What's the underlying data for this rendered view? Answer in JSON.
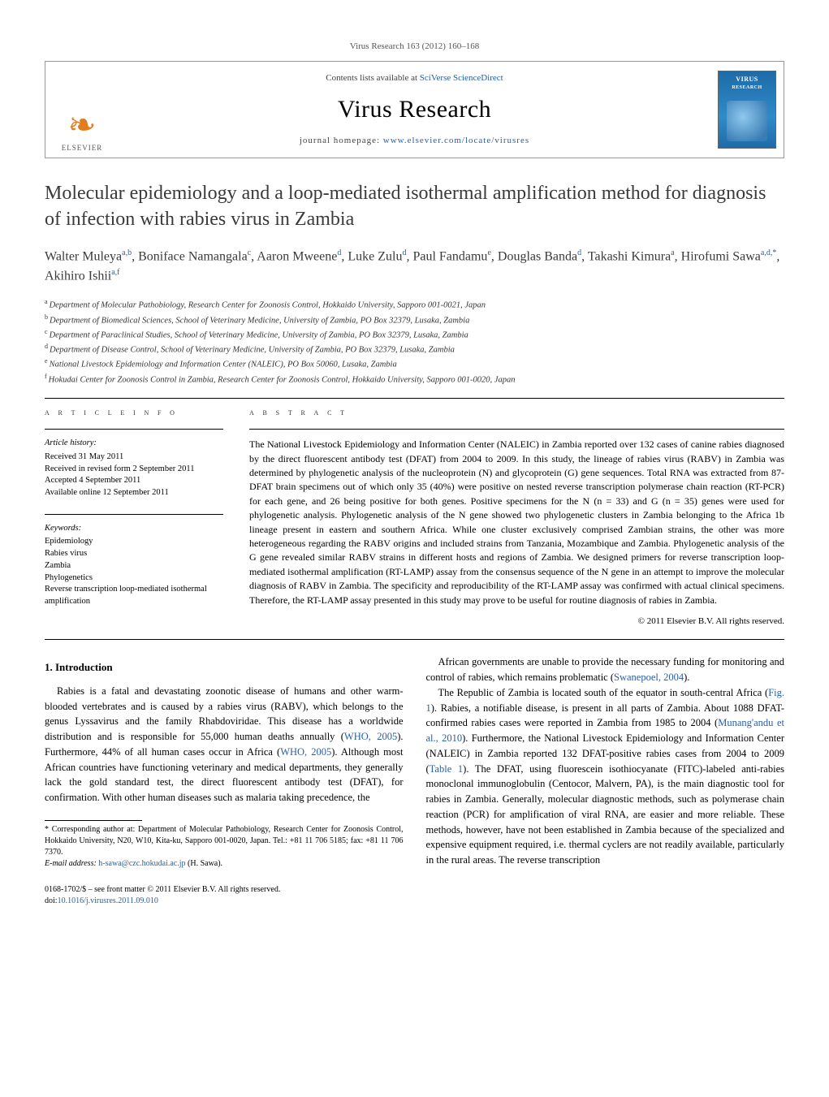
{
  "header": {
    "citation": "Virus Research 163 (2012) 160–168"
  },
  "masthead": {
    "contents_prefix": "Contents lists available at ",
    "contents_link": "SciVerse ScienceDirect",
    "journal": "Virus Research",
    "homepage_prefix": "journal homepage: ",
    "homepage_url": "www.elsevier.com/locate/virusres",
    "publisher_name": "ELSEVIER",
    "cover_label": "VIRUS",
    "cover_sublabel": "RESEARCH"
  },
  "article": {
    "title": "Molecular epidemiology and a loop-mediated isothermal amplification method for diagnosis of infection with rabies virus in Zambia",
    "authors_html_parts": [
      {
        "name": "Walter Muleya",
        "sup": "a,b"
      },
      {
        "name": "Boniface Namangala",
        "sup": "c"
      },
      {
        "name": "Aaron Mweene",
        "sup": "d"
      },
      {
        "name": "Luke Zulu",
        "sup": "d"
      },
      {
        "name": "Paul Fandamu",
        "sup": "e"
      },
      {
        "name": "Douglas Banda",
        "sup": "d"
      },
      {
        "name": "Takashi Kimura",
        "sup": "a"
      },
      {
        "name": "Hirofumi Sawa",
        "sup": "a,d,*"
      },
      {
        "name": "Akihiro Ishii",
        "sup": "a,f"
      }
    ],
    "affiliations": [
      {
        "sup": "a",
        "text": "Department of Molecular Pathobiology, Research Center for Zoonosis Control, Hokkaido University, Sapporo 001-0021, Japan"
      },
      {
        "sup": "b",
        "text": "Department of Biomedical Sciences, School of Veterinary Medicine, University of Zambia, PO Box 32379, Lusaka, Zambia"
      },
      {
        "sup": "c",
        "text": "Department of Paraclinical Studies, School of Veterinary Medicine, University of Zambia, PO Box 32379, Lusaka, Zambia"
      },
      {
        "sup": "d",
        "text": "Department of Disease Control, School of Veterinary Medicine, University of Zambia, PO Box 32379, Lusaka, Zambia"
      },
      {
        "sup": "e",
        "text": "National Livestock Epidemiology and Information Center (NALEIC), PO Box 50060, Lusaka, Zambia"
      },
      {
        "sup": "f",
        "text": "Hokudai Center for Zoonosis Control in Zambia, Research Center for Zoonosis Control, Hokkaido University, Sapporo 001-0020, Japan"
      }
    ]
  },
  "article_info": {
    "label": "a r t i c l e   i n f o",
    "history_hd": "Article history:",
    "history": [
      "Received 31 May 2011",
      "Received in revised form 2 September 2011",
      "Accepted 4 September 2011",
      "Available online 12 September 2011"
    ],
    "keywords_hd": "Keywords:",
    "keywords": [
      "Epidemiology",
      "Rabies virus",
      "Zambia",
      "Phylogenetics",
      "Reverse transcription loop-mediated isothermal amplification"
    ]
  },
  "abstract": {
    "label": "a b s t r a c t",
    "text": "The National Livestock Epidemiology and Information Center (NALEIC) in Zambia reported over 132 cases of canine rabies diagnosed by the direct fluorescent antibody test (DFAT) from 2004 to 2009. In this study, the lineage of rabies virus (RABV) in Zambia was determined by phylogenetic analysis of the nucleoprotein (N) and glycoprotein (G) gene sequences. Total RNA was extracted from 87-DFAT brain specimens out of which only 35 (40%) were positive on nested reverse transcription polymerase chain reaction (RT-PCR) for each gene, and 26 being positive for both genes. Positive specimens for the N (n = 33) and G (n = 35) genes were used for phylogenetic analysis. Phylogenetic analysis of the N gene showed two phylogenetic clusters in Zambia belonging to the Africa 1b lineage present in eastern and southern Africa. While one cluster exclusively comprised Zambian strains, the other was more heterogeneous regarding the RABV origins and included strains from Tanzania, Mozambique and Zambia. Phylogenetic analysis of the G gene revealed similar RABV strains in different hosts and regions of Zambia. We designed primers for reverse transcription loop-mediated isothermal amplification (RT-LAMP) assay from the consensus sequence of the N gene in an attempt to improve the molecular diagnosis of RABV in Zambia. The specificity and reproducibility of the RT-LAMP assay was confirmed with actual clinical specimens. Therefore, the RT-LAMP assay presented in this study may prove to be useful for routine diagnosis of rabies in Zambia.",
    "copyright": "© 2011 Elsevier B.V. All rights reserved."
  },
  "body": {
    "intro_heading": "1. Introduction",
    "para1_pre": "Rabies is a fatal and devastating zoonotic disease of humans and other warm-blooded vertebrates and is caused by a rabies virus (RABV), which belongs to the genus Lyssavirus and the family Rhabdoviridae. This disease has a worldwide distribution and is responsible for 55,000 human deaths annually (",
    "cite1": "WHO, 2005",
    "para1_mid": "). Furthermore, 44% of all human cases occur in Africa (",
    "cite2": "WHO, 2005",
    "para1_post": "). Although most African countries have functioning veterinary and medical departments, they generally lack the gold standard test, the direct fluorescent antibody test (DFAT), for confirmation. With other human diseases such as malaria taking precedence, the",
    "para2_pre": "African governments are unable to provide the necessary funding for monitoring and control of rabies, which remains problematic (",
    "cite3": "Swanepoel, 2004",
    "para2_post": ").",
    "para3_pre": "The Republic of Zambia is located south of the equator in south-central Africa (",
    "cite4": "Fig. 1",
    "para3_mid1": "). Rabies, a notifiable disease, is present in all parts of Zambia. About 1088 DFAT-confirmed rabies cases were reported in Zambia from 1985 to 2004 (",
    "cite5": "Munang'andu et al., 2010",
    "para3_mid2": "). Furthermore, the National Livestock Epidemiology and Information Center (NALEIC) in Zambia reported 132 DFAT-positive rabies cases from 2004 to 2009 (",
    "cite6": "Table 1",
    "para3_post": "). The DFAT, using fluorescein isothiocyanate (FITC)-labeled anti-rabies monoclonal immunoglobulin (Centocor, Malvern, PA), is the main diagnostic tool for rabies in Zambia. Generally, molecular diagnostic methods, such as polymerase chain reaction (PCR) for amplification of viral RNA, are easier and more reliable. These methods, however, have not been established in Zambia because of the specialized and expensive equipment required, i.e. thermal cyclers are not readily available, particularly in the rural areas. The reverse transcription"
  },
  "footnotes": {
    "corr_label": "* ",
    "corr_text": "Corresponding author at: Department of Molecular Pathobiology, Research Center for Zoonosis Control, Hokkaido University, N20, W10, Kita-ku, Sapporo 001-0020, Japan. Tel.: +81 11 706 5185; fax: +81 11 706 7370.",
    "email_label": "E-mail address: ",
    "email": "h-sawa@czc.hokudai.ac.jp",
    "email_suffix": " (H. Sawa)."
  },
  "bottom": {
    "line1": "0168-1702/$ – see front matter © 2011 Elsevier B.V. All rights reserved.",
    "doi_prefix": "doi:",
    "doi": "10.1016/j.virusres.2011.09.010"
  },
  "colors": {
    "link": "#2860a8",
    "elsevier": "#e37b1f",
    "text": "#000000",
    "muted": "#555555"
  }
}
